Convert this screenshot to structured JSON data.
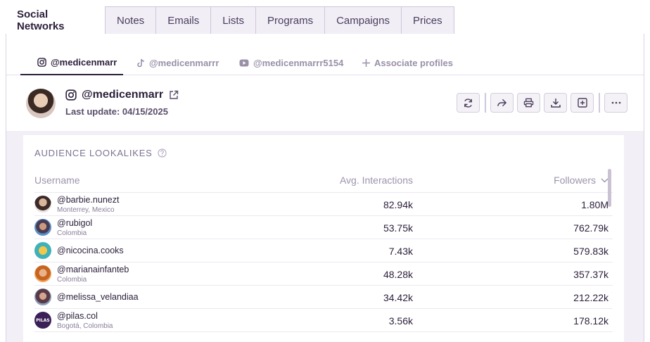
{
  "top_tabs": [
    {
      "label": "Social Networks",
      "active": true
    },
    {
      "label": "Notes"
    },
    {
      "label": "Emails"
    },
    {
      "label": "Lists"
    },
    {
      "label": "Programs"
    },
    {
      "label": "Campaigns"
    },
    {
      "label": "Prices"
    }
  ],
  "profile_tabs": [
    {
      "label": "@medicenmarr",
      "icon": "instagram-icon"
    },
    {
      "label": "@medicenmarrr",
      "icon": "tiktok-icon"
    },
    {
      "label": "@medicenmarrr5154",
      "icon": "youtube-icon"
    },
    {
      "label": "Associate profiles",
      "icon": "plus-icon"
    }
  ],
  "profile": {
    "handle": "@medicenmarr",
    "last_update": "Last update: 04/15/2025"
  },
  "actions": [
    "refresh-icon",
    "share-icon",
    "print-icon",
    "download-icon",
    "add-box-icon",
    "more-icon"
  ],
  "section": {
    "title": "AUDIENCE LOOKALIKES",
    "columns": {
      "username": "Username",
      "avg": "Avg. Interactions",
      "followers": "Followers"
    },
    "rows": [
      {
        "username": "@barbie.nunezt",
        "location": "Monterrey, Mexico",
        "avg": "82.94k",
        "followers": "1.80M"
      },
      {
        "username": "@rubigol",
        "location": "Colombia",
        "avg": "53.75k",
        "followers": "762.79k"
      },
      {
        "username": "@nicocina.cooks",
        "location": "",
        "avg": "7.43k",
        "followers": "579.83k"
      },
      {
        "username": "@marianainfanteb",
        "location": "Colombia",
        "avg": "48.28k",
        "followers": "357.37k"
      },
      {
        "username": "@melissa_velandiaa",
        "location": "",
        "avg": "34.42k",
        "followers": "212.22k"
      },
      {
        "username": "@pilas.col",
        "location": "Bogotá, Colombia",
        "avg": "3.56k",
        "followers": "178.12k"
      }
    ]
  },
  "avatar_logo_text": "PILAS",
  "colors": {
    "accent": "#2b1f3a",
    "muted": "#9a90a8",
    "section_bg": "#f2f0f6"
  }
}
